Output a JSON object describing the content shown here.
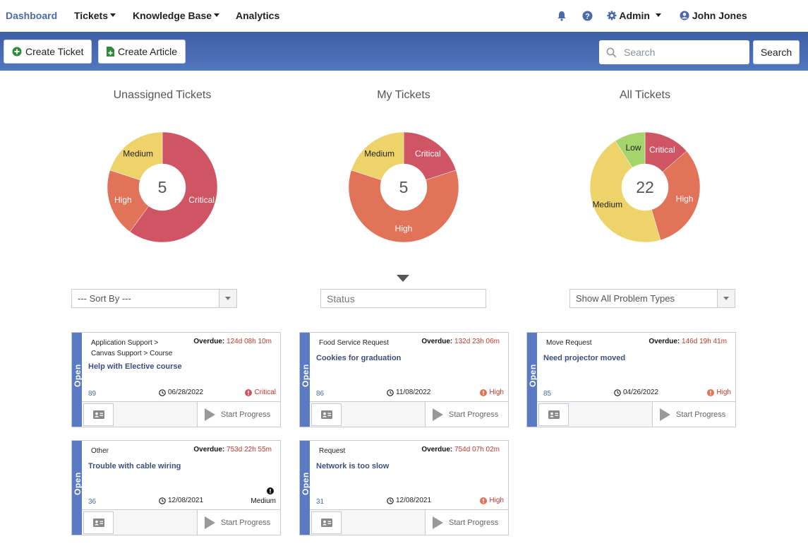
{
  "nav": {
    "brand": "Dashboard",
    "tickets": "Tickets",
    "knowledge_base": "Knowledge Base",
    "analytics": "Analytics",
    "admin": "Admin",
    "user": "John Jones",
    "bell_icon": "bell-icon",
    "help_icon": "question-circle-icon",
    "gear_icon": "gear-icon",
    "user_icon": "user-circle-icon"
  },
  "toolbar": {
    "create_ticket": "Create Ticket",
    "create_article": "Create Article",
    "search_placeholder": "Search",
    "search_button": "Search"
  },
  "colors": {
    "critical": "#d05564",
    "high": "#e07358",
    "medium": "#eed36a",
    "low": "#a5d46c",
    "accent": "#4a6aa8"
  },
  "chart_data": [
    {
      "type": "pie",
      "title": "Unassigned Tickets",
      "total": "5",
      "categories": [
        "Critical",
        "High",
        "Medium"
      ],
      "values": [
        3,
        1,
        1
      ]
    },
    {
      "type": "pie",
      "title": "My Tickets",
      "total": "5",
      "categories": [
        "Critical",
        "High",
        "Medium"
      ],
      "values": [
        1,
        3,
        1
      ]
    },
    {
      "type": "pie",
      "title": "All Tickets",
      "total": "22",
      "categories": [
        "Critical",
        "High",
        "Medium",
        "Low"
      ],
      "values": [
        3,
        7,
        10,
        2
      ]
    }
  ],
  "filters": {
    "sort_by": "--- Sort By ---",
    "status_placeholder": "Status",
    "problem_types": "Show All Problem Types"
  },
  "tickets": [
    {
      "status": "Open",
      "category_line1": "Application Support >",
      "category_line2": "Canvas Support > Course",
      "overdue_label": "Overdue:",
      "overdue": "124d 08h 10m",
      "title": "Help with Elective course",
      "id": "89",
      "date": "06/28/2022",
      "priority": "Critical",
      "start_progress": "Start Progress"
    },
    {
      "status": "Open",
      "category_line1": "Food Service Request",
      "category_line2": "",
      "overdue_label": "Overdue:",
      "overdue": "132d 23h 06m",
      "title": "Cookies for graduation",
      "id": "86",
      "date": "11/08/2022",
      "priority": "High",
      "start_progress": "Start Progress"
    },
    {
      "status": "Open",
      "category_line1": "Move Request",
      "category_line2": "",
      "overdue_label": "Overdue:",
      "overdue": "146d 19h 41m",
      "title": "Need projector moved",
      "id": "85",
      "date": "04/26/2022",
      "priority": "High",
      "start_progress": "Start Progress"
    },
    {
      "status": "Open",
      "category_line1": "Other",
      "category_line2": "",
      "overdue_label": "Overdue:",
      "overdue": "753d 22h 55m",
      "title": "Trouble with cable wiring",
      "id": "36",
      "date": "12/08/2021",
      "priority": "Medium",
      "start_progress": "Start Progress"
    },
    {
      "status": "Open",
      "category_line1": "Request",
      "category_line2": "",
      "overdue_label": "Overdue:",
      "overdue": "754d 07h 02m",
      "title": "Network is too slow",
      "id": "31",
      "date": "12/08/2021",
      "priority": "High",
      "start_progress": "Start Progress"
    }
  ]
}
